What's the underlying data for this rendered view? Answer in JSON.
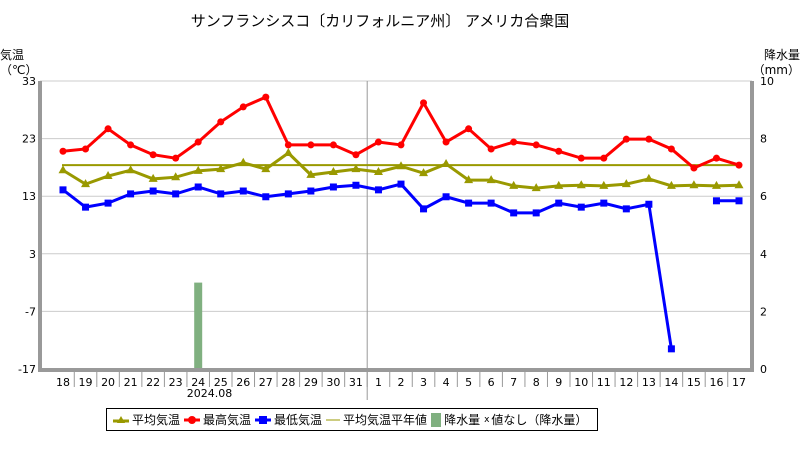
{
  "title": "サンフランシスコ〔カリフォルニア州〕 アメリカ合衆国",
  "chart_data": {
    "type": "line",
    "title": "サンフランシスコ〔カリフォルニア州〕 アメリカ合衆国",
    "ylabel_left": [
      "気温",
      "（℃）"
    ],
    "ylabel_right": [
      "降水量",
      "（mm）"
    ],
    "ylim_left": [
      -17,
      33
    ],
    "yticks_left": [
      "33",
      "23",
      "13",
      "3",
      "-7",
      "-17"
    ],
    "ylim_right": [
      0,
      10
    ],
    "yticks_right": [
      "10",
      "8",
      "6",
      "4",
      "2",
      "0"
    ],
    "categories": [
      "18",
      "19",
      "20",
      "21",
      "22",
      "23",
      "24",
      "25",
      "26",
      "27",
      "28",
      "29",
      "30",
      "31",
      "1",
      "2",
      "3",
      "4",
      "5",
      "6",
      "7",
      "8",
      "9",
      "10",
      "11",
      "12",
      "13",
      "14",
      "15",
      "16",
      "17"
    ],
    "month_label": "2024.08",
    "grid": true,
    "series": [
      {
        "name": "平均気温",
        "color": "#999900",
        "marker": "triangle",
        "values": [
          17.5,
          15.1,
          16.5,
          17.5,
          16.0,
          16.3,
          17.4,
          17.7,
          18.8,
          17.7,
          20.5,
          16.7,
          17.2,
          17.7,
          17.2,
          18.2,
          17.0,
          18.6,
          15.8,
          15.8,
          14.8,
          14.4,
          14.8,
          14.9,
          14.8,
          15.1,
          16.0,
          14.8,
          14.9,
          14.8,
          14.9
        ]
      },
      {
        "name": "最高気温",
        "color": "#ff0000",
        "marker": "circle",
        "values": [
          20.8,
          21.2,
          24.7,
          21.9,
          20.2,
          19.6,
          22.4,
          25.9,
          28.5,
          30.2,
          21.9,
          21.9,
          21.9,
          20.2,
          22.4,
          21.9,
          29.2,
          22.4,
          24.7,
          21.2,
          22.4,
          21.9,
          20.8,
          19.6,
          19.6,
          22.9,
          22.9,
          21.2,
          17.9,
          19.6,
          18.4
        ]
      },
      {
        "name": "最低気温",
        "color": "#0000ff",
        "marker": "square",
        "values": [
          14.1,
          11.1,
          11.8,
          13.4,
          13.9,
          13.4,
          14.6,
          13.4,
          13.9,
          12.9,
          13.4,
          13.9,
          14.6,
          14.9,
          14.1,
          15.1,
          10.8,
          12.9,
          11.8,
          11.8,
          10.1,
          10.1,
          11.8,
          11.1,
          11.8,
          10.8,
          11.6,
          -13.5,
          null,
          12.2,
          12.2
        ]
      }
    ],
    "normal": {
      "name": "平均気温平年値",
      "color": "#999900",
      "value": 18.4
    },
    "precipitation": {
      "name": "降水量",
      "color": "#80b080",
      "values": [
        0,
        0,
        0,
        0,
        0,
        0,
        3.0,
        0,
        0,
        0,
        0,
        0,
        0,
        0,
        0,
        0,
        0,
        0,
        0,
        0,
        0,
        0,
        0,
        0,
        0,
        0,
        0,
        0,
        0,
        0,
        0
      ]
    },
    "no_value_label": "値なし（降水量）",
    "no_value_mark": "x",
    "legend_position": "bottom"
  }
}
